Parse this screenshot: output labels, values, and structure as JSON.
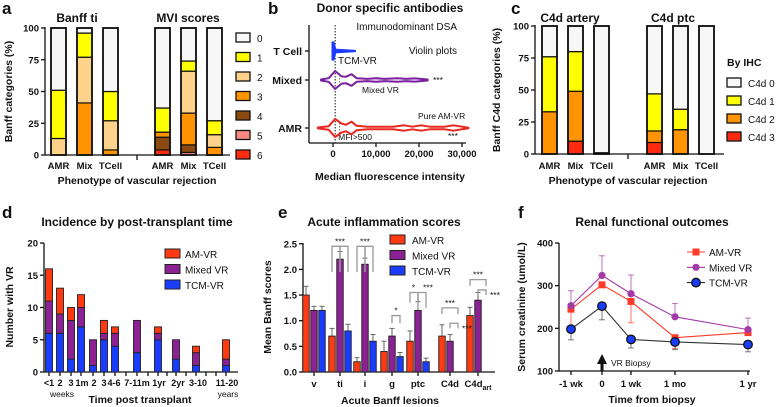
{
  "chart_data": [
    {
      "panel": "a",
      "type": "bar",
      "stacked": true,
      "groups": [
        {
          "title": "Banff ti",
          "bars": [
            {
              "label": "AMR",
              "values": [
                49,
                38,
                13,
                0,
                0,
                0,
                0
              ]
            },
            {
              "label": "Mix",
              "values": [
                4,
                19,
                36,
                41,
                0,
                0,
                0
              ]
            },
            {
              "label": "TCell",
              "values": [
                50,
                23,
                23,
                4,
                0,
                0,
                0
              ]
            }
          ]
        },
        {
          "title": "MVI scores",
          "bars": [
            {
              "label": "AMR",
              "values": [
                63,
                19,
                0,
                4,
                10,
                0,
                4
              ]
            },
            {
              "label": "Mix",
              "values": [
                26,
                8,
                33,
                25,
                6,
                2,
                0
              ]
            },
            {
              "label": "TCell",
              "values": [
                73,
                11,
                10,
                6,
                0,
                0,
                0
              ]
            }
          ]
        }
      ],
      "legend": [
        "0",
        "1",
        "2",
        "3",
        "4",
        "5",
        "6"
      ],
      "colors": [
        "#f7f7f7",
        "#ffff00",
        "#fdd38b",
        "#ff9400",
        "#8a4a10",
        "#f88a80",
        "#ff2a10"
      ],
      "ylabel": "Banff categories (%)",
      "xlabel": "Phenotype of vascular rejection",
      "yticks": [
        "0",
        "25",
        "50",
        "75",
        "100"
      ],
      "ylim": [
        0,
        100
      ]
    },
    {
      "panel": "b",
      "type": "violin",
      "title": "Donor specific antibodies",
      "xlabel": "Median fluorescence intensity",
      "xticks": [
        "0",
        "10,000",
        "20,000",
        "30,000"
      ],
      "xlim": [
        -4000,
        32000
      ],
      "threshold": {
        "value": 500,
        "label": "MFI>500"
      },
      "notes": [
        "Immunodominant DSA",
        "Violin plots"
      ],
      "rows": [
        {
          "label": "T Cell",
          "name": "TCM-VR",
          "color": "#1a3cff",
          "significance": "",
          "density_profile": [
            [
              -200,
              1
            ],
            [
              200,
              1
            ],
            [
              600,
              0.2
            ],
            [
              5200,
              0.05
            ]
          ]
        },
        {
          "label": "Mixed",
          "name": "Mixed VR",
          "color": "#7a1fa0",
          "significance": "***",
          "density_profile": [
            [
              -2800,
              0.05
            ],
            [
              -1000,
              0.2
            ],
            [
              500,
              1
            ],
            [
              2000,
              0.4
            ],
            [
              3000,
              0.35
            ],
            [
              4300,
              0.65
            ],
            [
              5500,
              0.2
            ],
            [
              8000,
              0.12
            ],
            [
              10000,
              0.2
            ],
            [
              12000,
              0.12
            ],
            [
              15000,
              0.2
            ],
            [
              17000,
              0.12
            ],
            [
              19000,
              0.18
            ],
            [
              22000,
              0.05
            ]
          ]
        },
        {
          "label": "AMR",
          "name": "Pure AM-VR",
          "color": "#e8281e",
          "significance": "***",
          "density_profile": [
            [
              -3500,
              0.05
            ],
            [
              -1000,
              0.2
            ],
            [
              500,
              1
            ],
            [
              2000,
              0.5
            ],
            [
              3000,
              0.35
            ],
            [
              4300,
              0.7
            ],
            [
              5500,
              0.25
            ],
            [
              8000,
              0.15
            ],
            [
              14000,
              0.15
            ],
            [
              16500,
              0.3
            ],
            [
              18500,
              0.15
            ],
            [
              20500,
              0.3
            ],
            [
              22500,
              0.15
            ],
            [
              26000,
              0.15
            ],
            [
              28000,
              0.3
            ],
            [
              30000,
              0.15
            ],
            [
              31500,
              0.03
            ]
          ]
        }
      ]
    },
    {
      "panel": "c",
      "type": "bar",
      "stacked": true,
      "groups": [
        {
          "title": "C4d artery",
          "bars": [
            {
              "label": "AMR",
              "values": [
                24,
                43,
                33,
                0
              ]
            },
            {
              "label": "Mix",
              "values": [
                20,
                31,
                39,
                10
              ]
            },
            {
              "label": "TCell",
              "values": [
                99,
                0,
                1,
                0
              ]
            }
          ]
        },
        {
          "title": "C4d ptc",
          "bars": [
            {
              "label": "AMR",
              "values": [
                53,
                29,
                9,
                9
              ]
            },
            {
              "label": "Mix",
              "values": [
                65,
                16,
                19,
                0
              ]
            },
            {
              "label": "TCell",
              "values": [
                100,
                0,
                0,
                0
              ]
            }
          ]
        }
      ],
      "legend_title": "By IHC",
      "legend": [
        "C4d 0",
        "C4d 1",
        "C4d 2",
        "C4d 3"
      ],
      "colors": [
        "#f7f7f7",
        "#ffff00",
        "#ff9400",
        "#ff2a10"
      ],
      "ylabel": "Banff C4d categories (%)",
      "xlabel": "Phenotype of vascular rejection",
      "yticks": [
        "0",
        "25",
        "50",
        "75",
        "100"
      ],
      "ylim": [
        0,
        100
      ]
    },
    {
      "panel": "d",
      "type": "bar",
      "stacked": true,
      "title": "Incidence by post-transplant time",
      "xlabel": "Time post transplant",
      "ylabel": "Number with VR",
      "categories": [
        "<1",
        "2",
        "3",
        "1m",
        "2",
        "3",
        "4-6",
        "7-11m",
        "1yr",
        "2yr",
        "3-10",
        "11-20"
      ],
      "unit_labels": [
        "weeks",
        "years"
      ],
      "yticks": [
        "0",
        "5",
        "10",
        "15",
        "20"
      ],
      "ylim": [
        0,
        20
      ],
      "series": [
        {
          "name": "TCM-VR",
          "color": "#1a3cff",
          "values": [
            6,
            6,
            2,
            7,
            1,
            5,
            4,
            3,
            5,
            2,
            1,
            1
          ]
        },
        {
          "name": "Mixed VR",
          "color": "#8b2192",
          "values": [
            5,
            3,
            6,
            3,
            4,
            1,
            2,
            5,
            1,
            3,
            2,
            1
          ]
        },
        {
          "name": "AM-VR",
          "color": "#ff3a12",
          "values": [
            5,
            4,
            2,
            2,
            0,
            2,
            1,
            0,
            1,
            0,
            1,
            3
          ]
        }
      ],
      "legend": [
        "AM-VR",
        "Mixed VR",
        "TCM-VR"
      ]
    },
    {
      "panel": "e",
      "type": "bar",
      "title": "Acute inflammation scores",
      "xlabel": "Acute Banff lesions",
      "ylabel": "Mean Banff scores",
      "categories": [
        {
          "label": "v",
          "sub": ""
        },
        {
          "label": "ti",
          "sub": ""
        },
        {
          "label": "i",
          "sub": ""
        },
        {
          "label": "g",
          "sub": ""
        },
        {
          "label": "ptc",
          "sub": ""
        },
        {
          "label": "C4d",
          "sub": ""
        },
        {
          "label": "C4d",
          "sub": "art"
        }
      ],
      "yticks": [
        "0.0",
        "0.5",
        "1.0",
        "1.5",
        "2.0",
        "2.5"
      ],
      "ylim": [
        0,
        2.5
      ],
      "series": [
        {
          "name": "AM-VR",
          "color": "#ff3a12",
          "values": [
            1.5,
            0.7,
            0.2,
            0.4,
            0.6,
            0.7,
            1.1
          ],
          "err": [
            0.17,
            0.15,
            0.08,
            0.2,
            0.2,
            0.22,
            0.16
          ]
        },
        {
          "name": "Mixed VR",
          "color": "#8b2192",
          "values": [
            1.2,
            2.2,
            2.1,
            0.7,
            1.2,
            0.6,
            1.4
          ],
          "err": [
            0.08,
            0.15,
            0.12,
            0.15,
            0.17,
            0.13,
            0.15
          ]
        },
        {
          "name": "TCM-VR",
          "color": "#1a3cff",
          "values": [
            1.2,
            0.8,
            0.6,
            0.3,
            0.2,
            null,
            null
          ],
          "err": [
            0.08,
            0.13,
            0.13,
            0.08,
            0.07,
            null,
            null
          ]
        }
      ],
      "significance": [
        {
          "lesion": "ti",
          "compare": [
            0,
            1,
            2
          ],
          "label": "***"
        },
        {
          "lesion": "i",
          "compare": [
            0,
            1,
            2
          ],
          "label": "***"
        },
        {
          "lesion": "g",
          "compare": [
            1,
            2
          ],
          "label": "*"
        },
        {
          "lesion": "ptc",
          "compare": [
            0,
            1
          ],
          "label": "*"
        },
        {
          "lesion": "ptc",
          "compare": [
            1,
            2
          ],
          "label": "***"
        },
        {
          "lesion": "C4d",
          "compare": [
            0,
            2
          ],
          "label": "***"
        },
        {
          "lesion": "C4d",
          "compare": [
            1,
            2
          ],
          "label": "***"
        },
        {
          "lesion": "C4d_art",
          "compare": [
            0,
            2
          ],
          "label": "***"
        },
        {
          "lesion": "C4d_art",
          "compare": [
            1,
            2
          ],
          "label": "***"
        }
      ]
    },
    {
      "panel": "f",
      "type": "line",
      "title": "Renal functional outcomes",
      "xlabel": "Time from biopsy",
      "ylabel": "Serum creatinine (umol/L)",
      "x": [
        "-1 wk",
        "0",
        "1 wk",
        "1 mo",
        "1 yr"
      ],
      "yticks": [
        "100",
        "200",
        "300",
        "400"
      ],
      "ylim": [
        100,
        400
      ],
      "annotation": "VR Biopsy",
      "series": [
        {
          "name": "AM-VR",
          "color": "#ff3a2a",
          "marker": "square",
          "values": [
            245,
            302,
            263,
            178,
            190
          ],
          "err": [
            40,
            0,
            50,
            25,
            0
          ],
          "err_dir": "down"
        },
        {
          "name": "Mixed VR",
          "color": "#a23aa8",
          "marker": "circle",
          "values": [
            253,
            324,
            281,
            227,
            197
          ],
          "err": [
            35,
            46,
            44,
            31,
            27
          ],
          "err_dir": "up"
        },
        {
          "name": "TCM-VR",
          "color": "#333333",
          "marker": "blue-circle",
          "values": [
            198,
            252,
            174,
            168,
            162
          ],
          "err": [
            25,
            32,
            20,
            18,
            17
          ],
          "err_dir": "down"
        }
      ]
    }
  ]
}
